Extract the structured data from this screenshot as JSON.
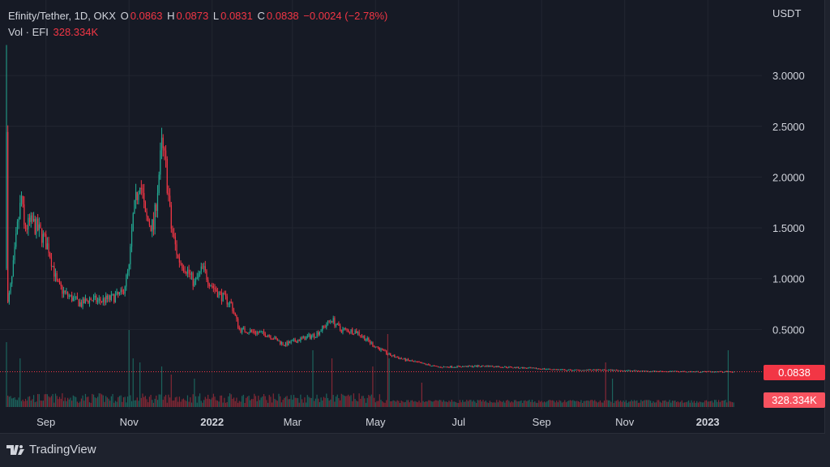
{
  "header": {
    "symbol": "Efinity/Tether, 1D, OKX",
    "o_label": "O",
    "o": "0.0863",
    "h_label": "H",
    "h": "0.0873",
    "l_label": "L",
    "l": "0.0831",
    "c_label": "C",
    "c": "0.0838",
    "change": "−0.0024 (−2.78%)",
    "vol_label": "Vol · EFI",
    "vol": "328.334K"
  },
  "currency": "USDT",
  "price_tag": "0.0838",
  "volume_tag": "328.334K",
  "brand": "TradingView",
  "colors": {
    "up": "#22ab94",
    "down": "#f23645",
    "bg": "#161a25",
    "grid": "#222631"
  },
  "chart_data": {
    "type": "candlestick",
    "start_date": "2021-08-03",
    "y_ticks": [
      "3.0000",
      "2.5000",
      "2.0000",
      "1.5000",
      "1.0000",
      "0.5000"
    ],
    "y_tick_values": [
      3.0,
      2.5,
      2.0,
      1.5,
      1.0,
      0.5
    ],
    "ylim": [
      0,
      3.5
    ],
    "x_ticks": [
      {
        "label": "Sep",
        "day": 29
      },
      {
        "label": "Nov",
        "day": 90
      },
      {
        "label": "2022",
        "day": 151
      },
      {
        "label": "Mar",
        "day": 210
      },
      {
        "label": "May",
        "day": 271
      },
      {
        "label": "Jul",
        "day": 332
      },
      {
        "label": "Sep",
        "day": 393
      },
      {
        "label": "Nov",
        "day": 454
      },
      {
        "label": "2023",
        "day": 515
      }
    ],
    "close_path_days": [
      0,
      1,
      4,
      8,
      11,
      13,
      19,
      25,
      31,
      37,
      43,
      49,
      55,
      61,
      67,
      76,
      85,
      90,
      93,
      98,
      102,
      108,
      114,
      117,
      121,
      126,
      132,
      138,
      144,
      150,
      156,
      165,
      171,
      180,
      192,
      204,
      215,
      227,
      239,
      245,
      257,
      269,
      281,
      293,
      317,
      352,
      382,
      412,
      442,
      471,
      501,
      534
    ],
    "close_path_values": [
      2.6,
      0.75,
      1.0,
      1.5,
      1.8,
      1.5,
      1.55,
      1.45,
      1.3,
      0.95,
      0.85,
      0.8,
      0.75,
      0.8,
      0.78,
      0.8,
      0.85,
      1.1,
      1.6,
      2.0,
      1.6,
      1.5,
      2.3,
      2.1,
      1.5,
      1.2,
      1.1,
      0.95,
      1.1,
      0.95,
      0.85,
      0.75,
      0.5,
      0.48,
      0.45,
      0.35,
      0.4,
      0.45,
      0.6,
      0.5,
      0.48,
      0.35,
      0.25,
      0.2,
      0.13,
      0.14,
      0.12,
      0.1,
      0.1,
      0.09,
      0.085,
      0.0838
    ],
    "volume_spike_days": [
      0,
      10,
      90,
      93,
      98,
      114,
      121,
      138,
      225,
      239,
      269,
      280,
      281,
      305,
      440,
      445,
      530
    ],
    "volume_spike_values": [
      0.8,
      0.6,
      0.95,
      0.6,
      0.55,
      0.5,
      0.4,
      0.35,
      0.7,
      0.6,
      0.5,
      0.9,
      0.6,
      0.3,
      0.55,
      0.35,
      0.7
    ],
    "last_close": 0.0838
  }
}
